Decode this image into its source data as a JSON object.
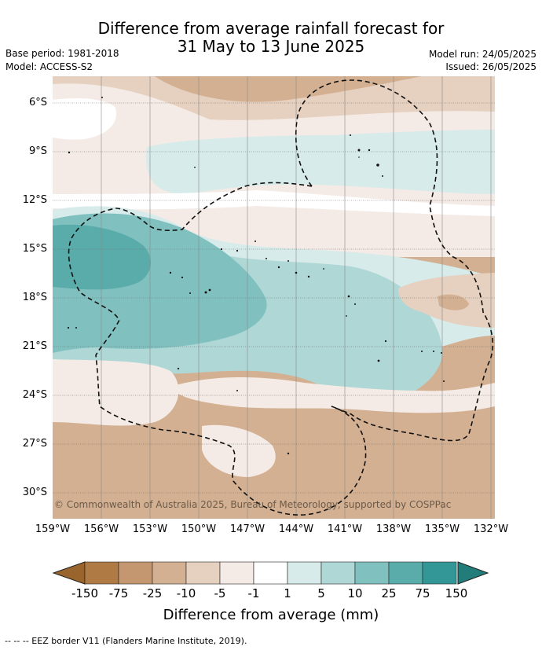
{
  "title_line1": "Difference from average rainfall forecast for",
  "title_line2": "31 May to 13 June 2025",
  "base_period": "Base period: 1981-2018",
  "model": "Model: ACCESS-S2",
  "model_run": "Model run: 24/05/2025",
  "issued": "Issued: 26/05/2025",
  "copyright": "© Commonwealth of Australia 2025, Bureau of Meteorology, supported by COSPPac",
  "lat_labels": [
    "6°S",
    "9°S",
    "12°S",
    "15°S",
    "18°S",
    "21°S",
    "24°S",
    "27°S",
    "30°S"
  ],
  "lon_labels": [
    "159°W",
    "156°W",
    "153°W",
    "150°W",
    "147°W",
    "144°W",
    "141°W",
    "138°W",
    "135°W",
    "132°W"
  ],
  "colorbar": {
    "title": "Difference from average (mm)",
    "ticks": [
      "-150",
      "-75",
      "-25",
      "-10",
      "-5",
      "-1",
      "1",
      "5",
      "10",
      "25",
      "75",
      "150"
    ],
    "colors": [
      "#b07a45",
      "#c49770",
      "#d4b092",
      "#e6d0bf",
      "#f4ebe6",
      "#ffffff",
      "#d6ebea",
      "#aed7d6",
      "#80c1c0",
      "#5aacab",
      "#329796"
    ],
    "under_color": "#9a652d",
    "over_color": "#217c7a"
  },
  "footnote": "-- -- -- EEZ border V11 (Flanders Marine Institute, 2019)."
}
